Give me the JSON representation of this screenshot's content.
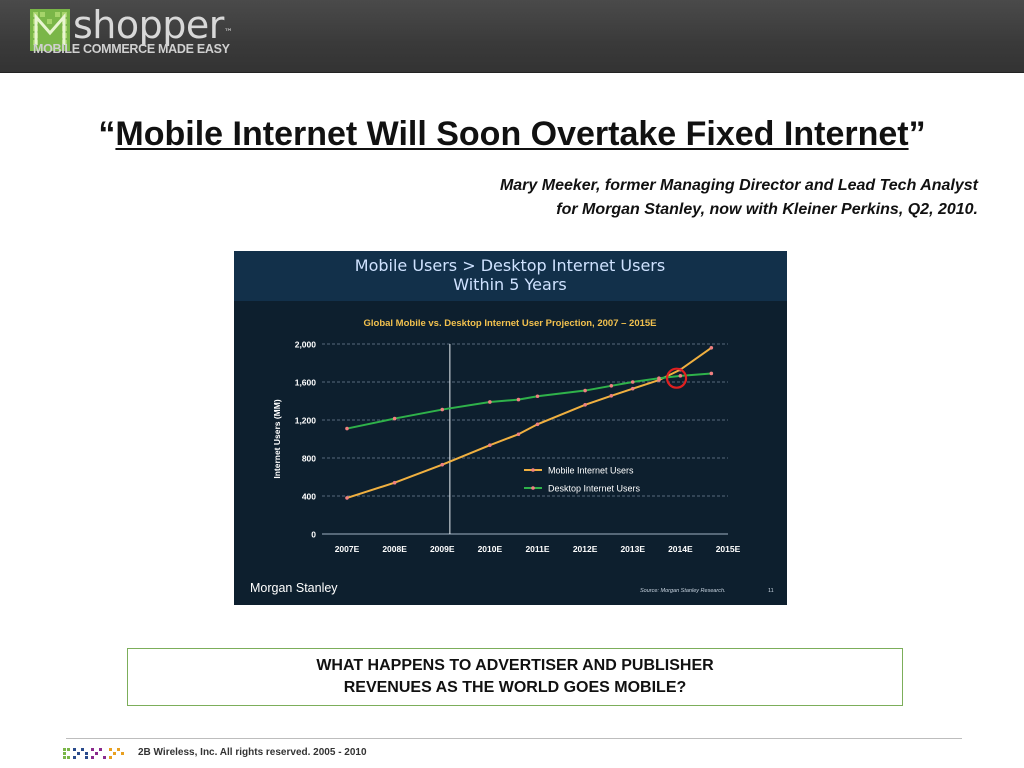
{
  "header": {
    "brand_name": "shopper",
    "trademark": "™",
    "tagline": "MOBILE COMMERCE MADE EASY",
    "brand_color": "#8dc63f"
  },
  "slide": {
    "quote_open": "“",
    "quote_text": "Mobile Internet Will Soon Overtake Fixed Internet",
    "quote_close": "”",
    "attribution_line1": "Mary Meeker, former Managing Director and Lead Tech Analyst",
    "attribution_line2": "for Morgan Stanley, now with Kleiner Perkins, Q2, 2010.",
    "question_line1": "WHAT HAPPENS TO ADVERTISER AND PUBLISHER",
    "question_line2": "REVENUES AS THE WORLD GOES MOBILE?"
  },
  "chart_data": {
    "type": "line",
    "headline_line1": "Mobile Users > Desktop Internet Users",
    "headline_line2": "Within 5 Years",
    "title": "Global Mobile vs. Desktop Internet User Projection, 2007 – 2015E",
    "ylabel": "Internet Users (MM)",
    "xlabel": "",
    "categories": [
      "2007E",
      "2008E",
      "2009E",
      "2010E",
      "2011E",
      "2012E",
      "2013E",
      "2014E",
      "2015E"
    ],
    "ylim": [
      0,
      2000
    ],
    "yticks": [
      "0",
      "400",
      "800",
      "1,200",
      "1,600",
      "2,000"
    ],
    "ytick_values": [
      0,
      400,
      800,
      1200,
      1600,
      2000
    ],
    "grid": true,
    "legend_position": "lower-right",
    "series": [
      {
        "name": "Mobile Internet Users",
        "color": "#f0b040",
        "marker_color": "#f08080",
        "x": [
          0,
          1,
          2,
          3,
          3.6,
          4,
          5,
          5.55,
          6,
          6.55,
          7,
          7.65
        ],
        "values": [
          380,
          540,
          730,
          935,
          1050,
          1155,
          1360,
          1455,
          1530,
          1620,
          1730,
          1960
        ]
      },
      {
        "name": "Desktop Internet Users",
        "color": "#2fb24a",
        "marker_color": "#f08080",
        "x": [
          0,
          1,
          2,
          3,
          3.6,
          4,
          5,
          5.55,
          6,
          6.55,
          7,
          7.65
        ],
        "values": [
          1110,
          1215,
          1310,
          1390,
          1415,
          1450,
          1510,
          1560,
          1600,
          1640,
          1665,
          1690
        ]
      }
    ],
    "divider_after_category": "2009E",
    "crossover_marker": "2014E",
    "crossover_marker_color": "#e02020",
    "source_note": "Source: Morgan Stanley Research.",
    "page_number": "11",
    "brand": "Morgan Stanley"
  },
  "footer": {
    "copyright": "2B Wireless, Inc. All rights reserved. 2005 - 2010"
  }
}
